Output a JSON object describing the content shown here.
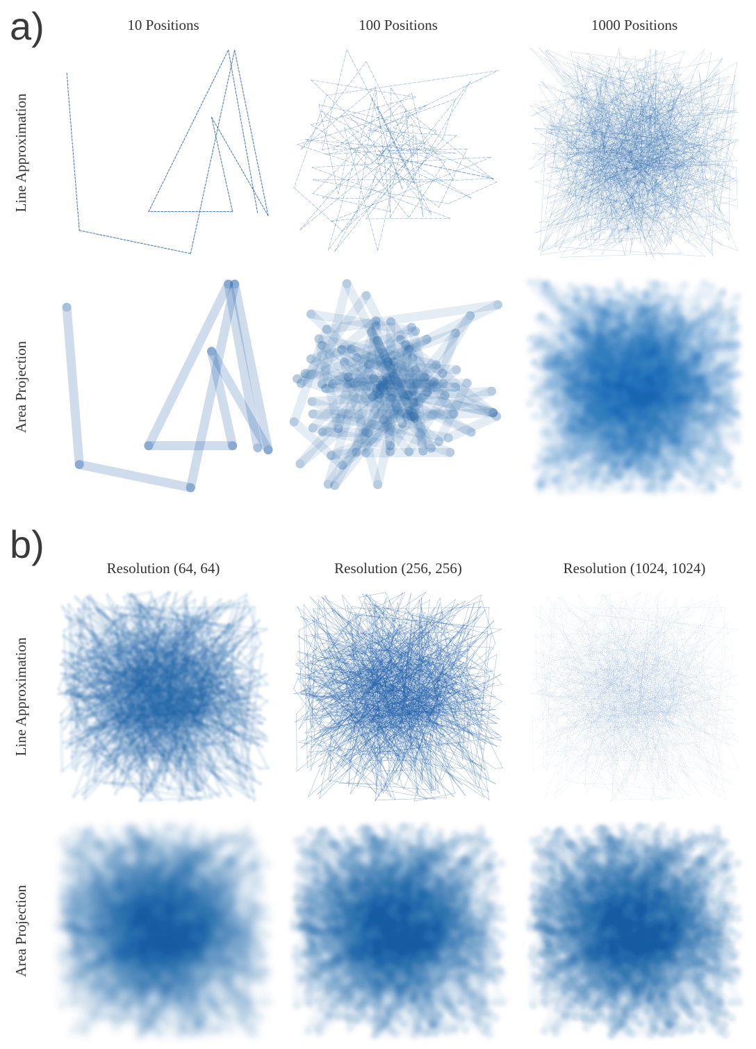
{
  "section_a": {
    "letter": "a)",
    "columns": [
      "10 Positions",
      "100 Positions",
      "1000 Positions"
    ],
    "rows": [
      "Line Approximation",
      "Area Projection"
    ]
  },
  "section_b": {
    "letter": "b)",
    "columns": [
      "Resolution (64, 64)",
      "Resolution (256, 256)",
      "Resolution (1024, 1024)"
    ],
    "rows": [
      "Line Approximation",
      "Area Projection"
    ]
  },
  "colors": {
    "ink": "#1f5fa8",
    "light": "#7aa3d4",
    "bg": "#ffffff"
  },
  "path_10": [
    [
      0.04,
      0.12
    ],
    [
      0.1,
      0.87
    ],
    [
      0.63,
      0.98
    ],
    [
      0.84,
      0.01
    ],
    [
      1.0,
      0.8
    ],
    [
      0.73,
      0.33
    ],
    [
      0.83,
      0.78
    ],
    [
      0.43,
      0.78
    ],
    [
      0.81,
      0.01
    ],
    [
      0.95,
      0.79
    ]
  ],
  "seeds": {
    "a_100": 7,
    "a_1000": 11,
    "b": 23
  },
  "position_counts": [
    10,
    100,
    1000
  ]
}
